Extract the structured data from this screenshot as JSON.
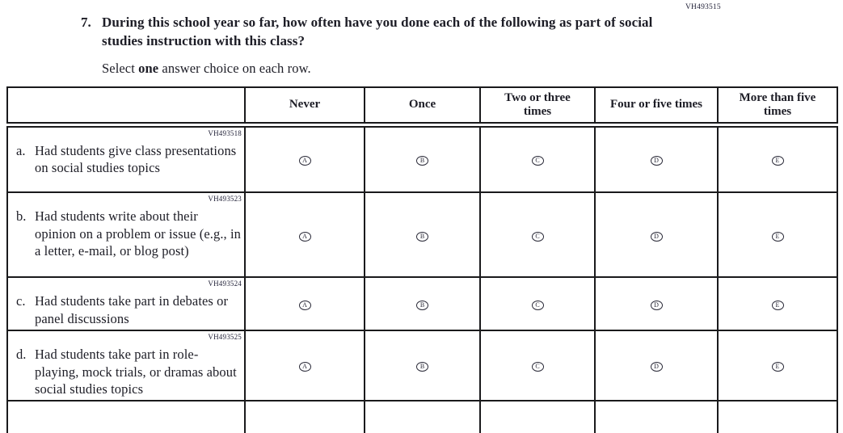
{
  "question": {
    "code": "VH493515",
    "number": "7.",
    "text": "During this school year so far, how often have you done each of the following as part of social studies instruction with this class?",
    "directions": {
      "prefix": "Select ",
      "emphasis": "one",
      "suffix": " answer choice on each row."
    }
  },
  "table": {
    "column_headers": [
      "Never",
      "Once",
      "Two or three times",
      "Four or five times",
      "More than five times"
    ],
    "option_letters": [
      "A",
      "B",
      "C",
      "D",
      "E"
    ],
    "rows": [
      {
        "code": "VH493518",
        "letter": "a.",
        "label": "Had students give class presentations on social studies topics"
      },
      {
        "code": "VH493523",
        "letter": "b.",
        "label": "Had students write about their opinion on a problem or issue (e.g., in a letter, e-mail, or blog post)"
      },
      {
        "code": "VH493524",
        "letter": "c.",
        "label": "Had students take part in debates or panel discussions"
      },
      {
        "code": "VH493525",
        "letter": "d.",
        "label": "Had students take part in role-playing, mock trials, or dramas about social studies topics"
      }
    ]
  }
}
